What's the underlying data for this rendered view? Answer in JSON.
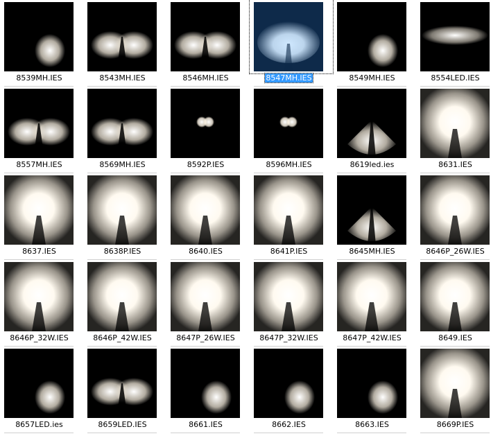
{
  "items": [
    {
      "label": "8539MH.IES",
      "icon": "spot-right-icon"
    },
    {
      "label": "8543MH.IES",
      "icon": "twin-lobe-icon"
    },
    {
      "label": "8546MH.IES",
      "icon": "twin-lobe-icon"
    },
    {
      "label": "8547MH.IES",
      "icon": "wide-blue-icon",
      "selected": true
    },
    {
      "label": "8549MH.IES",
      "icon": "spot-right-icon"
    },
    {
      "label": "8554LED.IES",
      "icon": "flat-beam-icon"
    },
    {
      "label": "8557MH.IES",
      "icon": "twin-lobe-icon"
    },
    {
      "label": "8569MH.IES",
      "icon": "twin-lobe-icon"
    },
    {
      "label": "8592P.IES",
      "icon": "small-heart-icon"
    },
    {
      "label": "8596MH.IES",
      "icon": "small-heart-icon"
    },
    {
      "label": "8619led.ies",
      "icon": "cone-icon"
    },
    {
      "label": "8631.IES",
      "icon": "large-bulb-icon"
    },
    {
      "label": "8637.IES",
      "icon": "large-bulb-icon"
    },
    {
      "label": "8638P.IES",
      "icon": "large-bulb-icon"
    },
    {
      "label": "8640.IES",
      "icon": "large-bulb-icon"
    },
    {
      "label": "8641P.IES",
      "icon": "large-bulb-icon"
    },
    {
      "label": "8645MH.IES",
      "icon": "cone-icon"
    },
    {
      "label": "8646P_26W.IES",
      "icon": "large-bulb-icon"
    },
    {
      "label": "8646P_32W.IES",
      "icon": "large-bulb-icon"
    },
    {
      "label": "8646P_42W.IES",
      "icon": "large-bulb-icon"
    },
    {
      "label": "8647P_26W.IES",
      "icon": "large-bulb-icon"
    },
    {
      "label": "8647P_32W.IES",
      "icon": "large-bulb-icon"
    },
    {
      "label": "8647P_42W.IES",
      "icon": "large-bulb-icon"
    },
    {
      "label": "8649.IES",
      "icon": "large-bulb-icon"
    },
    {
      "label": "8657LED.ies",
      "icon": "spot-right-icon"
    },
    {
      "label": "8659LED.IES",
      "icon": "twin-lobe-icon"
    },
    {
      "label": "8661.IES",
      "icon": "spot-right-icon"
    },
    {
      "label": "8662.IES",
      "icon": "spot-right-icon"
    },
    {
      "label": "8663.IES",
      "icon": "spot-right-icon"
    },
    {
      "label": "8669P.IES",
      "icon": "large-bulb-icon"
    }
  ],
  "colors": {
    "selection": "#3399ff",
    "thumb_bg": "#000000",
    "glow": "#fff6e6",
    "blue_bg": "#0e2a4a",
    "blue_glow": "#cfe8ff"
  }
}
